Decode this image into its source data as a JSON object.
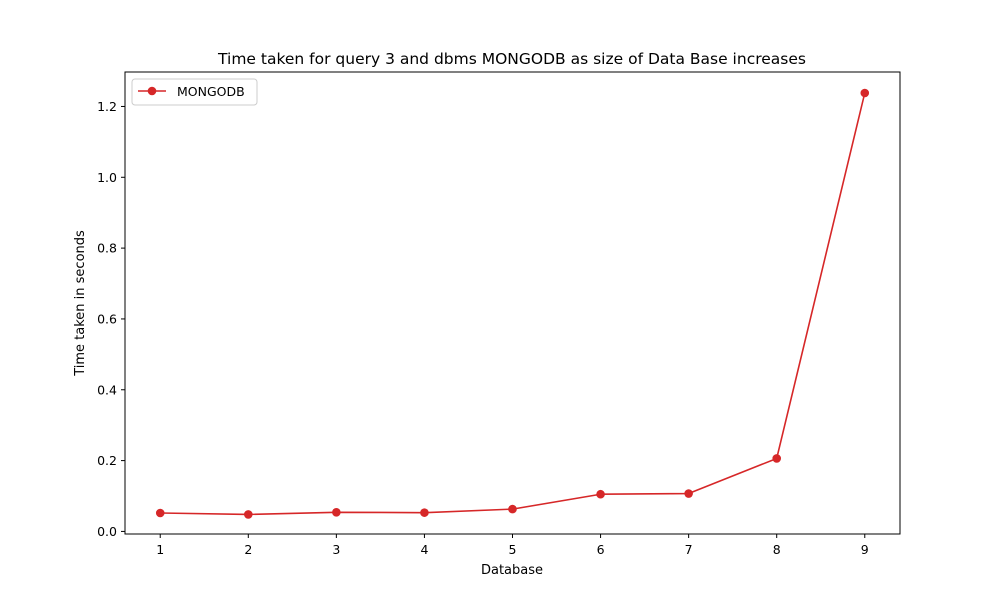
{
  "chart_data": {
    "type": "line",
    "title": "Time taken for query 3 and dbms MONGODB as size of Data Base increases",
    "xlabel": "Database",
    "ylabel": "Time taken in seconds",
    "x": [
      1,
      2,
      3,
      4,
      5,
      6,
      7,
      8,
      9
    ],
    "series": [
      {
        "name": "MONGODB",
        "color": "#d62728",
        "marker": "circle",
        "values": [
          0.052,
          0.048,
          0.054,
          0.053,
          0.063,
          0.105,
          0.107,
          0.206,
          1.238
        ]
      }
    ],
    "xlim": [
      0.6,
      9.4
    ],
    "ylim": [
      -0.0073,
      1.2973
    ],
    "xticks": [
      1,
      2,
      3,
      4,
      5,
      6,
      7,
      8,
      9
    ],
    "yticks": [
      0.0,
      0.2,
      0.4,
      0.6,
      0.8,
      1.0,
      1.2
    ],
    "xtick_labels": [
      "1",
      "2",
      "3",
      "4",
      "5",
      "6",
      "7",
      "8",
      "9"
    ],
    "ytick_labels": [
      "0.0",
      "0.2",
      "0.4",
      "0.6",
      "0.8",
      "1.0",
      "1.2"
    ],
    "grid": false,
    "legend_position": "top-left"
  }
}
